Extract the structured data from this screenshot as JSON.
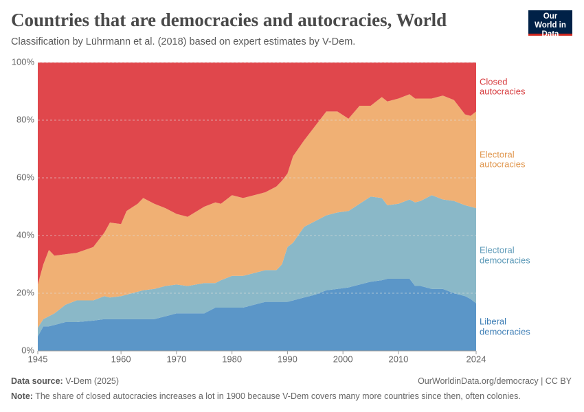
{
  "header": {
    "title": "Countries that are democracies and autocracies, World",
    "subtitle": "Classification by Lührmann et al. (2018) based on expert estimates by V-Dem.",
    "logo": "Our World in Data"
  },
  "footer": {
    "source_label": "Data source:",
    "source": "V-Dem (2025)",
    "url": "OurWorldinData.org/democracy | CC BY",
    "note_label": "Note:",
    "note": "The share of closed autocracies increases a lot in 1900 because V-Dem covers many more countries since then, often colonies."
  },
  "chart_data": {
    "type": "stacked_area",
    "x": [
      1945,
      1946,
      1947,
      1948,
      1950,
      1952,
      1955,
      1957,
      1958,
      1960,
      1961,
      1963,
      1964,
      1966,
      1968,
      1970,
      1972,
      1975,
      1977,
      1978,
      1980,
      1982,
      1984,
      1986,
      1988,
      1989,
      1990,
      1991,
      1993,
      1995,
      1997,
      1999,
      2001,
      2003,
      2005,
      2007,
      2008,
      2010,
      2012,
      2013,
      2014,
      2016,
      2018,
      2020,
      2022,
      2023,
      2024
    ],
    "series": [
      {
        "name": "Liberal democracies",
        "color": "#5b96c8",
        "label_color": "#3f7fb6",
        "values": [
          5,
          8.5,
          8.5,
          9,
          10,
          10,
          10.5,
          11,
          11,
          11,
          11,
          11,
          11,
          11,
          12,
          13,
          13,
          13,
          15,
          15,
          15,
          15,
          16,
          17,
          17,
          17,
          17,
          17.5,
          18.5,
          19.5,
          21,
          21.5,
          22,
          23,
          24,
          24.5,
          25,
          25,
          25,
          22.5,
          22.5,
          21.5,
          21.5,
          20,
          19,
          18,
          16.5
        ]
      },
      {
        "name": "Electoral democracies",
        "color": "#8ab8c8",
        "label_color": "#5d9ab8",
        "values": [
          3,
          2.5,
          3.5,
          4,
          6,
          7.5,
          7,
          8,
          7.5,
          8,
          8.5,
          9.5,
          10,
          10.5,
          10.5,
          10,
          9.5,
          10.5,
          8.5,
          9.5,
          11,
          11,
          11,
          11,
          11,
          13,
          19,
          20,
          24.5,
          25.5,
          26,
          26.5,
          26.5,
          28,
          29.5,
          28.5,
          25.5,
          26,
          27.5,
          29,
          29.5,
          32.5,
          31,
          32,
          31.5,
          32,
          33
        ]
      },
      {
        "name": "Electoral autocracies",
        "color": "#f0b074",
        "label_color": "#e0964d",
        "values": [
          15,
          19,
          23,
          20,
          17.5,
          16.5,
          18.5,
          22,
          26,
          25,
          29,
          30.5,
          32,
          29.5,
          27,
          24.5,
          24,
          26.5,
          28,
          26.5,
          28,
          27,
          27,
          27,
          29,
          29,
          25.5,
          30,
          30,
          33,
          36,
          35,
          32,
          34,
          31.5,
          35,
          36,
          36.5,
          36.5,
          36,
          35.5,
          33.5,
          36,
          35,
          31.5,
          31.5,
          33.5
        ]
      },
      {
        "name": "Closed autocracies",
        "color": "#e0474c",
        "label_color": "#d73c3f",
        "values": [
          77,
          70,
          65,
          67,
          66.5,
          66,
          64,
          59,
          55.5,
          56,
          51.5,
          49,
          47,
          49,
          50.5,
          52.5,
          53.5,
          50,
          48.5,
          49,
          46,
          47,
          46,
          45,
          43,
          41,
          38.5,
          32.5,
          27,
          22,
          17,
          17,
          19.5,
          15,
          15,
          12,
          13.5,
          12.5,
          11,
          12.5,
          12.5,
          12.5,
          11.5,
          13,
          18,
          18.5,
          17
        ]
      }
    ],
    "xlim": [
      1945,
      2024
    ],
    "xticks": [
      1945,
      1960,
      1970,
      1980,
      1990,
      2000,
      2010,
      2024
    ],
    "ylim": [
      0,
      100
    ],
    "yticks": [
      {
        "value": 0,
        "label": "0%"
      },
      {
        "value": 20,
        "label": "20%"
      },
      {
        "value": 40,
        "label": "40%"
      },
      {
        "value": 60,
        "label": "60%"
      },
      {
        "value": 80,
        "label": "80%"
      },
      {
        "value": 100,
        "label": "100%"
      }
    ],
    "grid": true
  }
}
